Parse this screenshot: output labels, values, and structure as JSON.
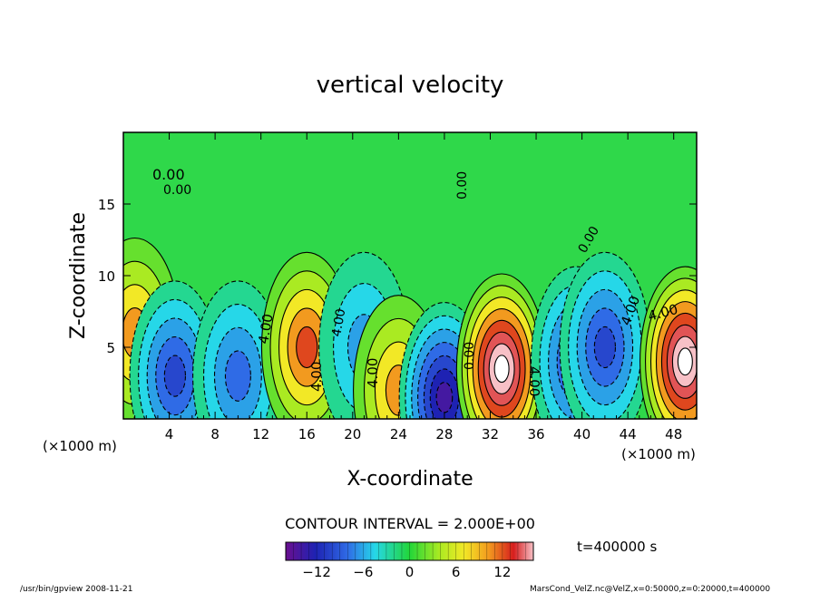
{
  "chart_data": {
    "type": "heatmap",
    "title": "vertical velocity",
    "xlabel": "X-coordinate",
    "ylabel": "Z-coordinate",
    "x_unit_left": "(×1000 m)",
    "x_unit_right": "(×1000 m)",
    "xlim": [
      0,
      50
    ],
    "ylim": [
      0,
      20
    ],
    "x_ticks": [
      "4",
      "8",
      "12",
      "16",
      "20",
      "24",
      "28",
      "32",
      "36",
      "40",
      "44",
      "48"
    ],
    "y_ticks": [
      "5",
      "10",
      "15"
    ],
    "contour_labels": [
      "0.00",
      "0.00",
      "0.00",
      "0.00",
      "4.00",
      "4.00",
      "4.00",
      "4.00",
      "4.00",
      "4.00",
      "0.00",
      "4.00"
    ],
    "contour_interval": "CONTOUR INTERVAL = 2.000E+00",
    "time_label": "t=400000 s",
    "colorbar": {
      "min": -16,
      "max": 16,
      "ticks": [
        "−12",
        "−6",
        "0",
        "6",
        "12"
      ]
    },
    "cells": [
      {
        "x": 1,
        "z": 6,
        "w": 7
      },
      {
        "x": 4.5,
        "z": 3,
        "w": -9
      },
      {
        "x": 10,
        "z": 3,
        "w": -8
      },
      {
        "x": 16,
        "z": 5,
        "w": 9
      },
      {
        "x": 21,
        "z": 5,
        "w": -5
      },
      {
        "x": 24,
        "z": 2,
        "w": 8
      },
      {
        "x": 28,
        "z": 1.5,
        "w": -14
      },
      {
        "x": 33,
        "z": 3.5,
        "w": 15
      },
      {
        "x": 39.5,
        "z": 4,
        "w": -10
      },
      {
        "x": 42,
        "z": 5,
        "w": -9
      },
      {
        "x": 49,
        "z": 4,
        "w": 15
      }
    ]
  },
  "footer": {
    "program": "/usr/bin/gpview  2008-11-21",
    "source": "MarsCond_VelZ.nc@VelZ,x=0:50000,z=0:20000,t=400000"
  }
}
